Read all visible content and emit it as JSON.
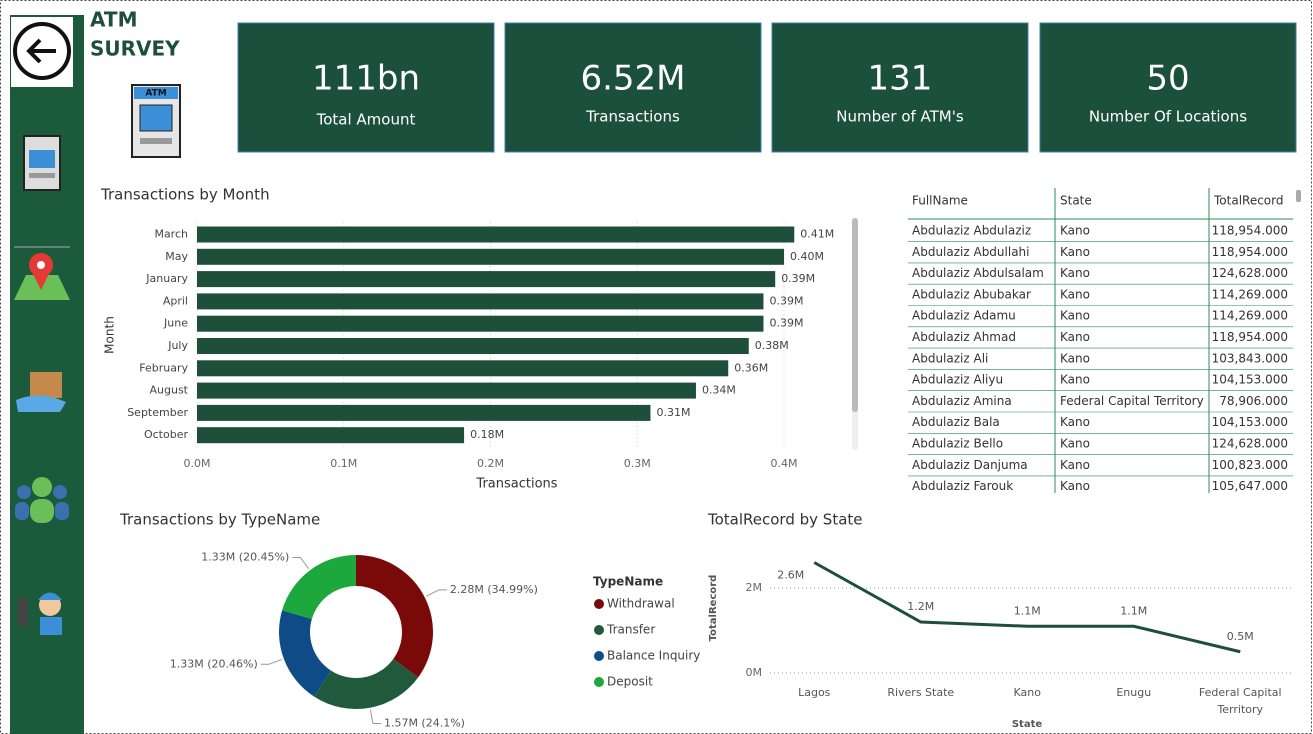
{
  "header": {
    "title": "ATM SURVEY",
    "atm_icon_text": "ATM"
  },
  "kpis": [
    {
      "value": "111bn",
      "label": "Total Amount"
    },
    {
      "value": "6.52M",
      "label": "Transactions"
    },
    {
      "value": "131",
      "label": "Number of ATM's"
    },
    {
      "value": "50",
      "label": "Number Of Locations"
    }
  ],
  "table": {
    "columns": [
      "FullName",
      "State",
      "TotalRecord"
    ],
    "rows": [
      [
        "Abdulaziz Abdulaziz",
        "Kano",
        "118,954.000"
      ],
      [
        "Abdulaziz Abdullahi",
        "Kano",
        "118,954.000"
      ],
      [
        "Abdulaziz Abdulsalam",
        "Kano",
        "124,628.000"
      ],
      [
        "Abdulaziz Abubakar",
        "Kano",
        "114,269.000"
      ],
      [
        "Abdulaziz Adamu",
        "Kano",
        "114,269.000"
      ],
      [
        "Abdulaziz Ahmad",
        "Kano",
        "118,954.000"
      ],
      [
        "Abdulaziz Ali",
        "Kano",
        "103,843.000"
      ],
      [
        "Abdulaziz Aliyu",
        "Kano",
        "104,153.000"
      ],
      [
        "Abdulaziz Amina",
        "Federal Capital Territory",
        "78,906.000"
      ],
      [
        "Abdulaziz Bala",
        "Kano",
        "104,153.000"
      ],
      [
        "Abdulaziz Bello",
        "Kano",
        "124,628.000"
      ],
      [
        "Abdulaziz Danjuma",
        "Kano",
        "100,823.000"
      ],
      [
        "Abdulaziz Farouk",
        "Kano",
        "105,647.000"
      ]
    ]
  },
  "chart_data": [
    {
      "type": "hbar",
      "title": "Transactions by Month",
      "x_label": "Transactions",
      "y_label": "Month",
      "color": "#1d4f3a",
      "categories": [
        "March",
        "May",
        "January",
        "April",
        "June",
        "July",
        "February",
        "August",
        "September",
        "October"
      ],
      "values": [
        407000,
        400000,
        394000,
        386000,
        386000,
        376000,
        362000,
        340000,
        309000,
        182000
      ],
      "value_labels": [
        "0.41M",
        "0.40M",
        "0.39M",
        "0.39M",
        "0.39M",
        "0.38M",
        "0.36M",
        "0.34M",
        "0.31M",
        "0.18M"
      ],
      "xlim": [
        0,
        440000
      ],
      "xticks": [
        {
          "value": 0,
          "label": "0.0M"
        },
        {
          "value": 100000,
          "label": "0.1M"
        },
        {
          "value": 200000,
          "label": "0.2M"
        },
        {
          "value": 300000,
          "label": "0.3M"
        },
        {
          "value": 400000,
          "label": "0.4M"
        }
      ]
    },
    {
      "type": "donut",
      "title": "Transactions by TypeName",
      "legend_title": "TypeName",
      "series": [
        {
          "name": "Withdrawal",
          "color": "#7a0a0a",
          "values": [
            2280000
          ],
          "value_labels": [
            "2.28M (34.99%)"
          ]
        },
        {
          "name": "Transfer",
          "color": "#1f5a3d",
          "values": [
            1570000
          ],
          "value_labels": [
            "1.57M (24.1%)"
          ]
        },
        {
          "name": "Balance Inquiry",
          "color": "#0f4c87",
          "values": [
            1330000
          ],
          "value_labels": [
            "1.33M (20.46%)"
          ]
        },
        {
          "name": "Deposit",
          "color": "#1ca83c",
          "values": [
            1330000
          ],
          "value_labels": [
            "1.33M (20.45%)"
          ]
        }
      ]
    },
    {
      "type": "line",
      "title": "TotalRecord by State",
      "x_label": "State",
      "y_label": "TotalRecord",
      "color": "#1d4f3a",
      "categories": [
        "Lagos",
        "Rivers State",
        "Kano",
        "Enugu",
        "Federal Capital Territory"
      ],
      "values": [
        2600000,
        1200000,
        1100000,
        1100000,
        500000
      ],
      "value_labels": [
        "2.6M",
        "1.2M",
        "1.1M",
        "1.1M",
        "0.5M"
      ],
      "ylim": [
        0,
        2800000
      ],
      "yticks": [
        {
          "value": 0,
          "label": "0M"
        },
        {
          "value": 2000000,
          "label": "2M"
        }
      ]
    }
  ]
}
